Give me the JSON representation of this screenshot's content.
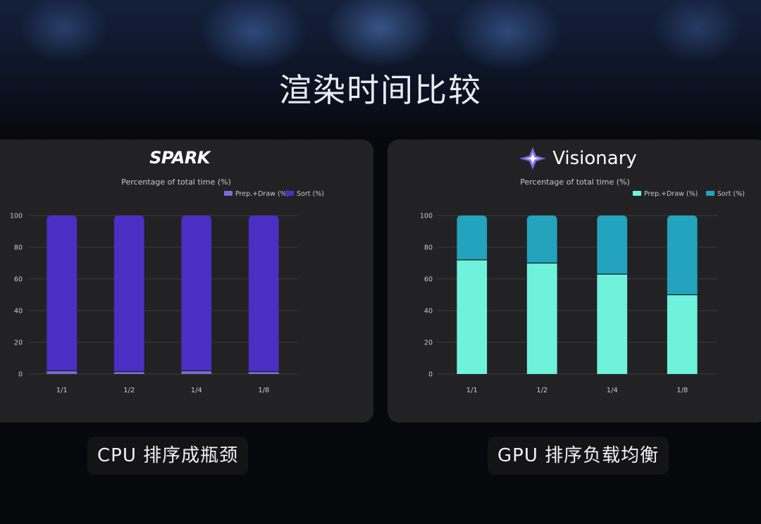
{
  "slide": {
    "title": "渲染时间比较"
  },
  "panels": [
    {
      "logo": "SPARK",
      "caption": "CPU 排序成瓶颈"
    },
    {
      "logo": "Visionary",
      "caption": "GPU 排序负载均衡"
    }
  ],
  "colors": {
    "spark_prep": "#7c6bd6",
    "spark_sort": "#4a2fc4",
    "vis_prep": "#6ff2dc",
    "vis_sort": "#23a3bd",
    "grid": "#3a3a3e",
    "text": "#c9c9c9"
  },
  "chart_data": [
    {
      "type": "bar",
      "stacked": true,
      "title": "Percentage of total time (%)",
      "categories": [
        "1/1",
        "1/2",
        "1/4",
        "1/8"
      ],
      "series": [
        {
          "name": "Prep.+Draw (%)",
          "values": [
            2,
            1.5,
            2,
            1.5
          ]
        },
        {
          "name": "Sort (%)",
          "values": [
            98,
            98.5,
            98,
            98.5
          ]
        }
      ],
      "ylim": [
        0,
        100
      ],
      "yticks": [
        0,
        20,
        40,
        60,
        80,
        100
      ],
      "grid": true,
      "legend": "top-right"
    },
    {
      "type": "bar",
      "stacked": true,
      "title": "Percentage of total time (%)",
      "categories": [
        "1/1",
        "1/2",
        "1/4",
        "1/8"
      ],
      "series": [
        {
          "name": "Prep.+Draw (%)",
          "values": [
            72,
            70,
            63,
            50
          ]
        },
        {
          "name": "Sort (%)",
          "values": [
            28,
            30,
            37,
            50
          ]
        }
      ],
      "ylim": [
        0,
        100
      ],
      "yticks": [
        0,
        20,
        40,
        60,
        80,
        100
      ],
      "grid": true,
      "legend": "top-right"
    }
  ]
}
